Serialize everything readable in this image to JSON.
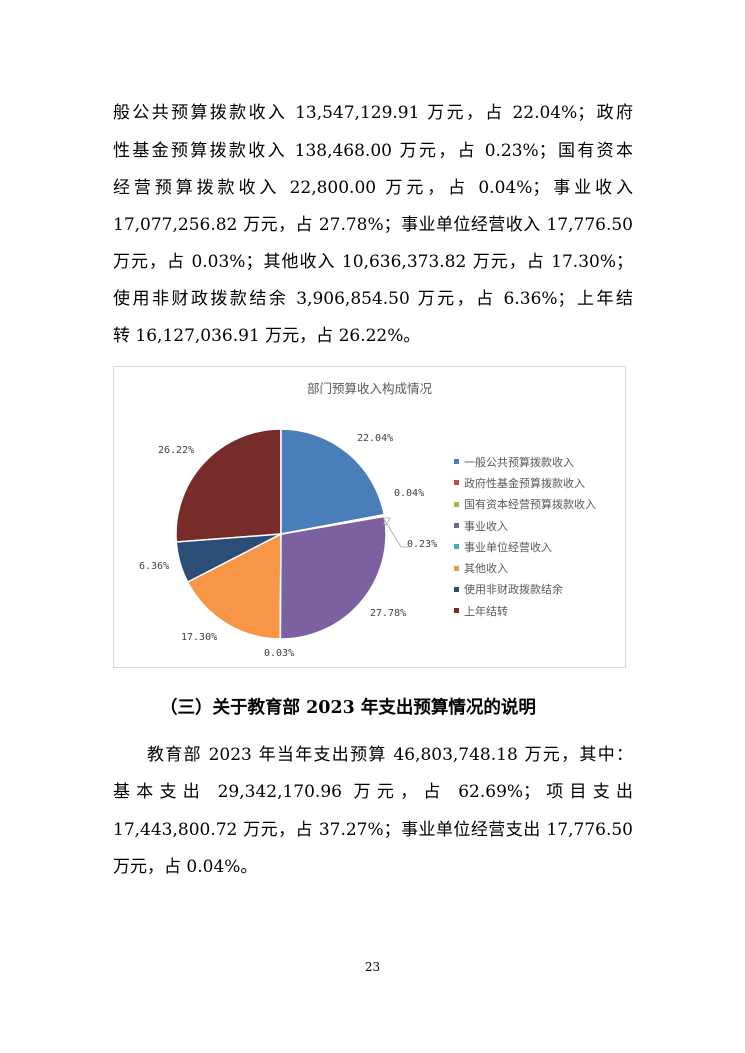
{
  "income_paragraph": [
    "般公共预算拨款收入 13,547,129.91 万元，占 22.04%；政府",
    "性基金预算拨款收入 138,468.00 万元，占 0.23%；国有资本",
    "经营预算拨款收入 22,800.00 万元，占 0.04%；事业收入",
    "17,077,256.82 万元，占 27.78%；事业单位经营收入 17,776.50",
    "万元，占 0.03%；其他收入 10,636,373.82 万元，占 17.30%；",
    "使用非财政拨款结余 3,906,854.50 万元，占 6.36%；上年结",
    "转 16,127,036.91 万元，占 26.22%。"
  ],
  "chart_data": {
    "type": "pie",
    "title": "部门预算收入构成情况",
    "legend_position": "right",
    "categories": [
      "一般公共预算拨款收入",
      "政府性基金预算拨款收入",
      "国有资本经营预算拨款收入",
      "事业收入",
      "事业单位经营收入",
      "其他收入",
      "使用非财政拨款结余",
      "上年结转"
    ],
    "values": [
      22.04,
      0.23,
      0.04,
      27.78,
      0.03,
      17.3,
      6.36,
      26.22
    ],
    "labels": [
      "22.04%",
      "0.23%",
      "0.04%",
      "27.78%",
      "0.03%",
      "17.30%",
      "6.36%",
      "26.22%"
    ],
    "colors": [
      "#4a7ebb",
      "#be4b48",
      "#98b954",
      "#7d60a0",
      "#46aac5",
      "#f79646",
      "#2c4d75",
      "#772c2a"
    ]
  },
  "section_heading": "（三）关于教育部 2023 年支出预算情况的说明",
  "expense_paragraph": [
    "教育部 2023 年当年支出预算 46,803,748.18 万元，其中：",
    "基本支出 29,342,170.96 万元，占 62.69%；项目支出",
    "17,443,800.72 万元，占 37.27%；事业单位经营支出 17,776.50",
    "万元，占 0.04%。"
  ],
  "page_number": "23"
}
